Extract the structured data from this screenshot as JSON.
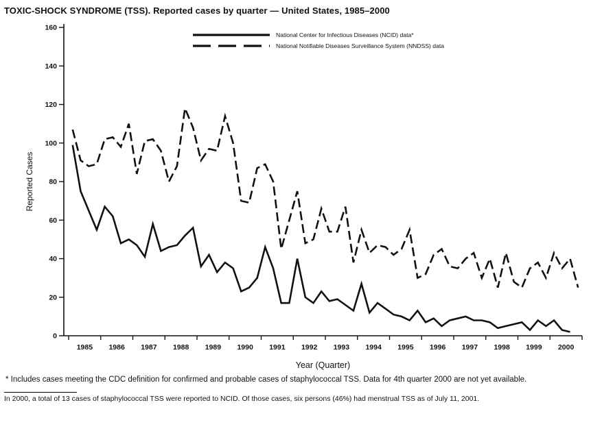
{
  "page": {
    "title": "TOXIC-SHOCK SYNDROME (TSS). Reported cases by quarter — United States, 1985–2000"
  },
  "chart_data": {
    "type": "line",
    "title": "TOXIC-SHOCK SYNDROME (TSS). Reported cases by quarter — United States, 1985–2000",
    "xlabel": "Year (Quarter)",
    "ylabel": "Reported Cases",
    "ylim": [
      0,
      160
    ],
    "ytick_interval": 20,
    "yticks": [
      0,
      20,
      40,
      60,
      80,
      100,
      120,
      140,
      160
    ],
    "grid": false,
    "legend_position": "top-inside",
    "line_color": "#111111",
    "x_unit": "quarter",
    "quarters_per_year": 4,
    "years": [
      "1985",
      "1986",
      "1987",
      "1988",
      "1989",
      "1990",
      "1991",
      "1992",
      "1993",
      "1994",
      "1995",
      "1996",
      "1997",
      "1998",
      "1999",
      "2000"
    ],
    "series": [
      {
        "name": "NNDSS",
        "label": "National Notifiable Diseases Surveillance System (NNDSS) data",
        "style": "dashed",
        "values": [
          107,
          91,
          88,
          89,
          102,
          103,
          98,
          110,
          84,
          101,
          102,
          96,
          80,
          88,
          118,
          108,
          91,
          97,
          96,
          114,
          100,
          70,
          69,
          87,
          89,
          80,
          45,
          60,
          75,
          48,
          50,
          66,
          54,
          54,
          67,
          38,
          55,
          43,
          47,
          46,
          42,
          45,
          55,
          30,
          32,
          42,
          45,
          36,
          35,
          40,
          43,
          30,
          40,
          25,
          43,
          28,
          25,
          35,
          38,
          30,
          43,
          35,
          40,
          25
        ]
      },
      {
        "name": "NCID",
        "label": "National Center for Infectious Diseases (NCID) data*",
        "style": "solid",
        "values": [
          99,
          75,
          65,
          55,
          67,
          62,
          48,
          50,
          47,
          41,
          58,
          44,
          46,
          47,
          52,
          56,
          36,
          42,
          33,
          38,
          35,
          23,
          25,
          30,
          46,
          35,
          17,
          17,
          40,
          20,
          17,
          23,
          18,
          19,
          16,
          13,
          27,
          12,
          17,
          14,
          11,
          10,
          8,
          13,
          7,
          9,
          5,
          8,
          9,
          10,
          8,
          8,
          7,
          4,
          5,
          6,
          7,
          3,
          8,
          5,
          8,
          3,
          2,
          null
        ]
      }
    ]
  },
  "footnotes": {
    "asterisk": "* Includes cases meeting the CDC definition for confirmed and probable cases of staphylococcal TSS. Data for 4th quarter 2000 are not yet available.",
    "summary": "In 2000, a total of 13 cases of staphylococcal TSS were reported to NCID. Of those cases, six persons (46%) had menstrual TSS as of July 11, 2001."
  }
}
